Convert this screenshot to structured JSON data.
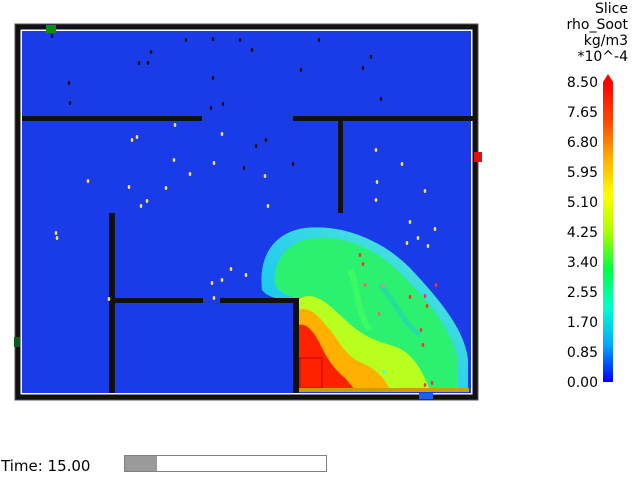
{
  "window_title": "",
  "colorbar": {
    "title_lines": [
      "Slice",
      "rho_Soot",
      "kg/m3",
      "*10^-4"
    ],
    "ticks": [
      "8.50",
      "7.65",
      "6.80",
      "5.95",
      "5.10",
      "4.25",
      "3.40",
      "2.55",
      "1.70",
      "0.85",
      "0.00"
    ],
    "range": [
      0.0,
      8.5
    ],
    "colors": [
      "#0000ff",
      "#00aaff",
      "#00ffcc",
      "#00ff44",
      "#aaff00",
      "#ffff00",
      "#ffaa00",
      "#ff4400",
      "#ff0000"
    ]
  },
  "viewer": {
    "floor_color": "#1a3ce8",
    "wall_color": "#111111",
    "background_color": "#ffffff"
  },
  "time": {
    "label": "Time: 15.00",
    "slider_progress": 0.16
  }
}
